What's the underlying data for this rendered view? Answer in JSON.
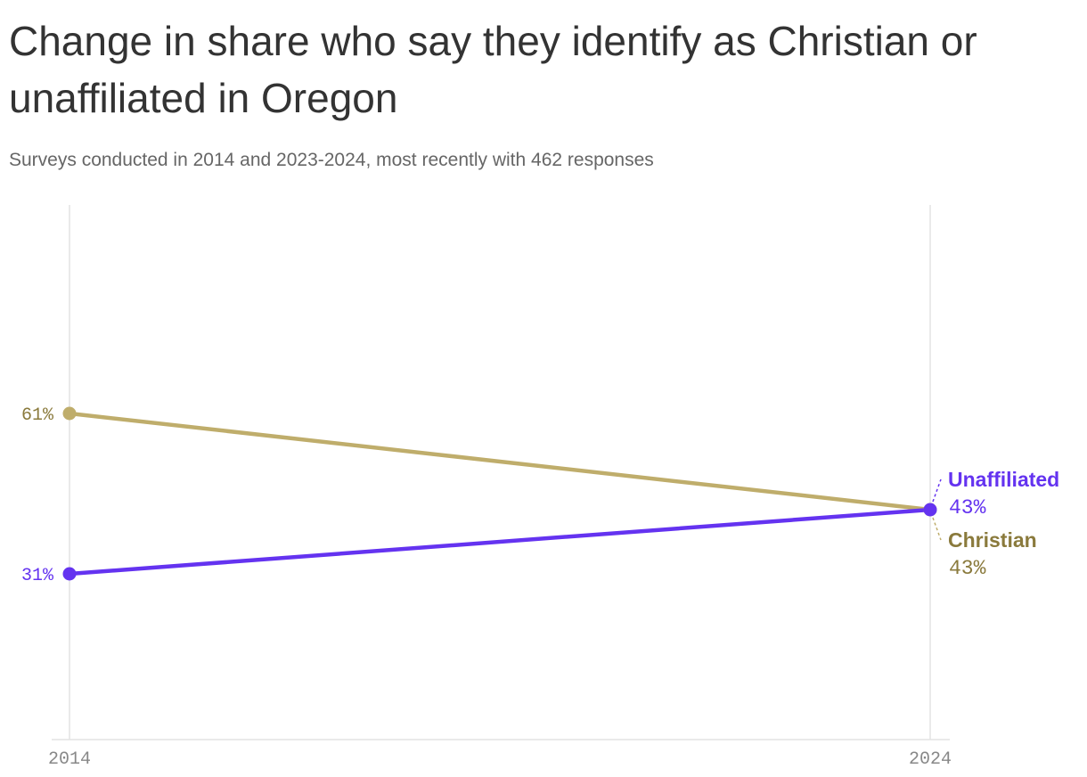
{
  "chart_data": {
    "type": "line",
    "title": "Change in share who say they identify as Christian or unaffiliated in Oregon",
    "subtitle": "Surveys conducted in 2014 and 2023-2024, most recently with 462 responses",
    "x": [
      "2014",
      "2024"
    ],
    "ylim": [
      0,
      100
    ],
    "series": [
      {
        "name": "Christian",
        "values": [
          61,
          43
        ],
        "value_labels": [
          "61%",
          "43%"
        ],
        "color": "#bfad6b",
        "label_color": "#8a7a3c"
      },
      {
        "name": "Unaffiliated",
        "values": [
          31,
          43
        ],
        "value_labels": [
          "31%",
          "43%"
        ],
        "color": "#6433f0",
        "label_color": "#6433f0"
      }
    ],
    "grid": "vertical lines at each year",
    "legend": "labels at right end of lines"
  }
}
